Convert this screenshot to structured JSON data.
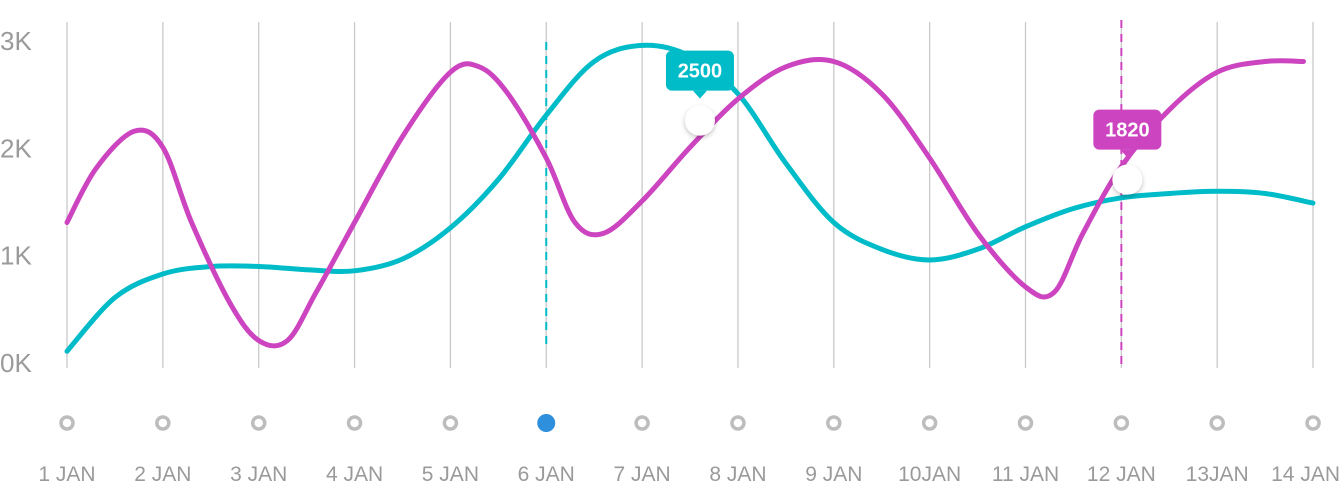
{
  "colors": {
    "teal": "#00BCC8",
    "magenta": "#CC44BF",
    "grid": "#c9c9c9",
    "axis_text": "#9a9a9a",
    "dot_idle": "#bdbdbd",
    "dot_active": "#2e8fdc"
  },
  "chart_data": {
    "type": "line",
    "smooth": true,
    "grid": "vertical",
    "ylim": [
      0,
      3000
    ],
    "y_ticks": [
      {
        "value": 0,
        "label": "0K"
      },
      {
        "value": 1000,
        "label": "1K"
      },
      {
        "value": 2000,
        "label": "2K"
      },
      {
        "value": 3000,
        "label": "3K"
      }
    ],
    "categories": [
      "1 JAN",
      "2 JAN",
      "3 JAN",
      "4 JAN",
      "5 JAN",
      "6 JAN",
      "7 JAN",
      "8 JAN",
      "9 JAN",
      "10JAN",
      "11 JAN",
      "12 JAN",
      "13JAN",
      "14 JAN"
    ],
    "active_category_index": 5,
    "series": [
      {
        "color": "teal",
        "points": [
          [
            0.0,
            100
          ],
          [
            0.5,
            600
          ],
          [
            1.0,
            820
          ],
          [
            1.5,
            890
          ],
          [
            2.0,
            890
          ],
          [
            2.5,
            860
          ],
          [
            3.0,
            850
          ],
          [
            3.5,
            960
          ],
          [
            4.0,
            1250
          ],
          [
            4.5,
            1700
          ],
          [
            5.0,
            2300
          ],
          [
            5.5,
            2800
          ],
          [
            6.0,
            2950
          ],
          [
            6.5,
            2850
          ],
          [
            7.0,
            2500
          ],
          [
            7.5,
            1850
          ],
          [
            8.0,
            1300
          ],
          [
            8.5,
            1050
          ],
          [
            9.0,
            950
          ],
          [
            9.5,
            1050
          ],
          [
            10.0,
            1260
          ],
          [
            10.5,
            1430
          ],
          [
            11.0,
            1530
          ],
          [
            11.5,
            1570
          ],
          [
            12.0,
            1590
          ],
          [
            12.5,
            1570
          ],
          [
            13.0,
            1480
          ]
        ]
      },
      {
        "color": "magenta",
        "points": [
          [
            0.0,
            1300
          ],
          [
            0.3,
            1800
          ],
          [
            0.7,
            2150
          ],
          [
            1.0,
            2000
          ],
          [
            1.3,
            1300
          ],
          [
            1.7,
            550
          ],
          [
            2.0,
            200
          ],
          [
            2.3,
            200
          ],
          [
            2.6,
            650
          ],
          [
            3.0,
            1300
          ],
          [
            3.5,
            2100
          ],
          [
            4.0,
            2700
          ],
          [
            4.3,
            2750
          ],
          [
            4.6,
            2500
          ],
          [
            5.0,
            1900
          ],
          [
            5.3,
            1300
          ],
          [
            5.6,
            1200
          ],
          [
            6.0,
            1500
          ],
          [
            6.5,
            2000
          ],
          [
            7.0,
            2450
          ],
          [
            7.5,
            2750
          ],
          [
            8.0,
            2800
          ],
          [
            8.5,
            2500
          ],
          [
            9.0,
            1900
          ],
          [
            9.5,
            1200
          ],
          [
            10.0,
            700
          ],
          [
            10.3,
            650
          ],
          [
            10.6,
            1200
          ],
          [
            11.0,
            1820
          ],
          [
            11.5,
            2350
          ],
          [
            12.0,
            2700
          ],
          [
            12.5,
            2800
          ],
          [
            12.9,
            2800
          ]
        ]
      }
    ],
    "guide_lines": [
      {
        "x": 5.0,
        "color": "teal"
      },
      {
        "x": 11.0,
        "color": "magenta"
      }
    ],
    "tooltips": [
      {
        "x": 7.0,
        "y": 2500,
        "label": "2500",
        "color": "teal"
      },
      {
        "x": 11.0,
        "y": 1820,
        "label": "1820",
        "color": "magenta"
      }
    ]
  }
}
